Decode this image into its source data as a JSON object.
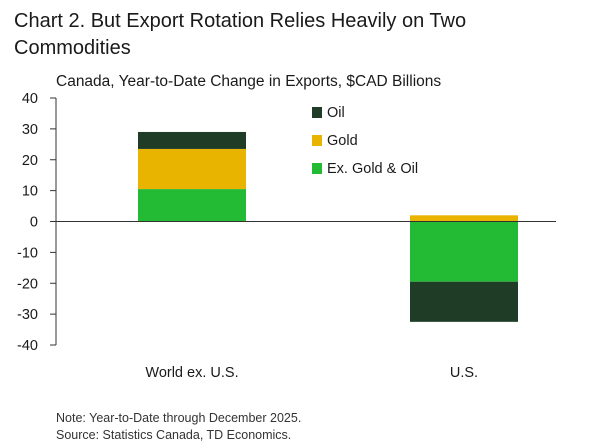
{
  "title": "Chart 2. But Export Rotation Relies Heavily on Two Commodities",
  "subtitle": "Canada, Year-to-Date Change in Exports, $CAD Billions",
  "notes": {
    "note": "Note: Year-to-Date through December 2025.",
    "source": "Source: Statistics Canada, TD Economics."
  },
  "colors": {
    "oil": "#1f3d26",
    "gold": "#e8b400",
    "ex_gold_oil": "#22bb33",
    "axis": "#333333",
    "text": "#1a1a1a"
  },
  "chart_data": {
    "type": "bar",
    "stacked": true,
    "categories": [
      "World ex. U.S.",
      "U.S."
    ],
    "series": [
      {
        "name": "Ex. Gold & Oil",
        "key": "ex_gold_oil",
        "values": [
          10.5,
          -19.5
        ]
      },
      {
        "name": "Gold",
        "key": "gold",
        "values": [
          13.0,
          2.0
        ]
      },
      {
        "name": "Oil",
        "key": "oil",
        "values": [
          5.5,
          -13.0
        ]
      }
    ],
    "legend_order": [
      "Oil",
      "Gold",
      "Ex. Gold & Oil"
    ],
    "legend_position": "top-right",
    "ylim": [
      -40,
      40
    ],
    "yticks": [
      40,
      30,
      20,
      10,
      0,
      -10,
      -20,
      -30,
      -40
    ],
    "ylabel": "",
    "xlabel": "",
    "grid": false
  }
}
